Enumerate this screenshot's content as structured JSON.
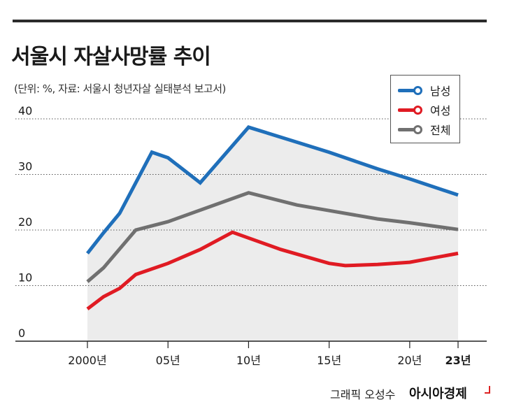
{
  "title": "서울시 자살사망률 추이",
  "subtitle": "(단위: %, 자료: 서울시 청년자살 실태분석 보고서)",
  "credit": "그래픽 오성수",
  "brand": "아시아경제",
  "colors": {
    "male": "#1f6fba",
    "female": "#e01b23",
    "total": "#707070",
    "area": "#ececec",
    "grid": "#555555"
  },
  "chart_data": {
    "type": "line",
    "x": [
      2000,
      2002,
      2003,
      2004,
      2005,
      2007,
      2010,
      2012,
      2015,
      2016,
      2018,
      2020,
      2022,
      2023
    ],
    "ylim": [
      0,
      40
    ],
    "yticks": [
      0,
      10,
      20,
      30,
      40
    ],
    "xticks": [
      {
        "x": 2000,
        "label": "2000년",
        "bold": false
      },
      {
        "x": 2005,
        "label": "05년",
        "bold": false
      },
      {
        "x": 2010,
        "label": "10년",
        "bold": false
      },
      {
        "x": 2015,
        "label": "15년",
        "bold": false
      },
      {
        "x": 2020,
        "label": "20년",
        "bold": false
      },
      {
        "x": 2023,
        "label": "23년",
        "bold": true
      }
    ],
    "legend_position": "top-right",
    "series": [
      {
        "name": "남성",
        "key": "male",
        "points": [
          [
            2000,
            15.8
          ],
          [
            2001,
            19.5
          ],
          [
            2002,
            23
          ],
          [
            2004,
            34
          ],
          [
            2005,
            33
          ],
          [
            2007,
            28.5
          ],
          [
            2010,
            38.5
          ],
          [
            2013,
            35.8
          ],
          [
            2015,
            34
          ],
          [
            2018,
            31
          ],
          [
            2020,
            29.2
          ],
          [
            2023,
            26.3
          ]
        ]
      },
      {
        "name": "여성",
        "key": "female",
        "points": [
          [
            2000,
            5.8
          ],
          [
            2001,
            8
          ],
          [
            2002,
            9.5
          ],
          [
            2003,
            12
          ],
          [
            2005,
            14
          ],
          [
            2007,
            16.5
          ],
          [
            2009,
            19.6
          ],
          [
            2012,
            16.5
          ],
          [
            2015,
            14
          ],
          [
            2016,
            13.6
          ],
          [
            2018,
            13.8
          ],
          [
            2020,
            14.2
          ],
          [
            2023,
            15.8
          ]
        ]
      },
      {
        "name": "전체",
        "key": "total",
        "points": [
          [
            2000,
            10.7
          ],
          [
            2001,
            13.2
          ],
          [
            2003,
            20
          ],
          [
            2005,
            21.5
          ],
          [
            2010,
            26.7
          ],
          [
            2013,
            24.5
          ],
          [
            2015,
            23.5
          ],
          [
            2018,
            22
          ],
          [
            2020,
            21.3
          ],
          [
            2023,
            20.1
          ]
        ]
      }
    ]
  }
}
